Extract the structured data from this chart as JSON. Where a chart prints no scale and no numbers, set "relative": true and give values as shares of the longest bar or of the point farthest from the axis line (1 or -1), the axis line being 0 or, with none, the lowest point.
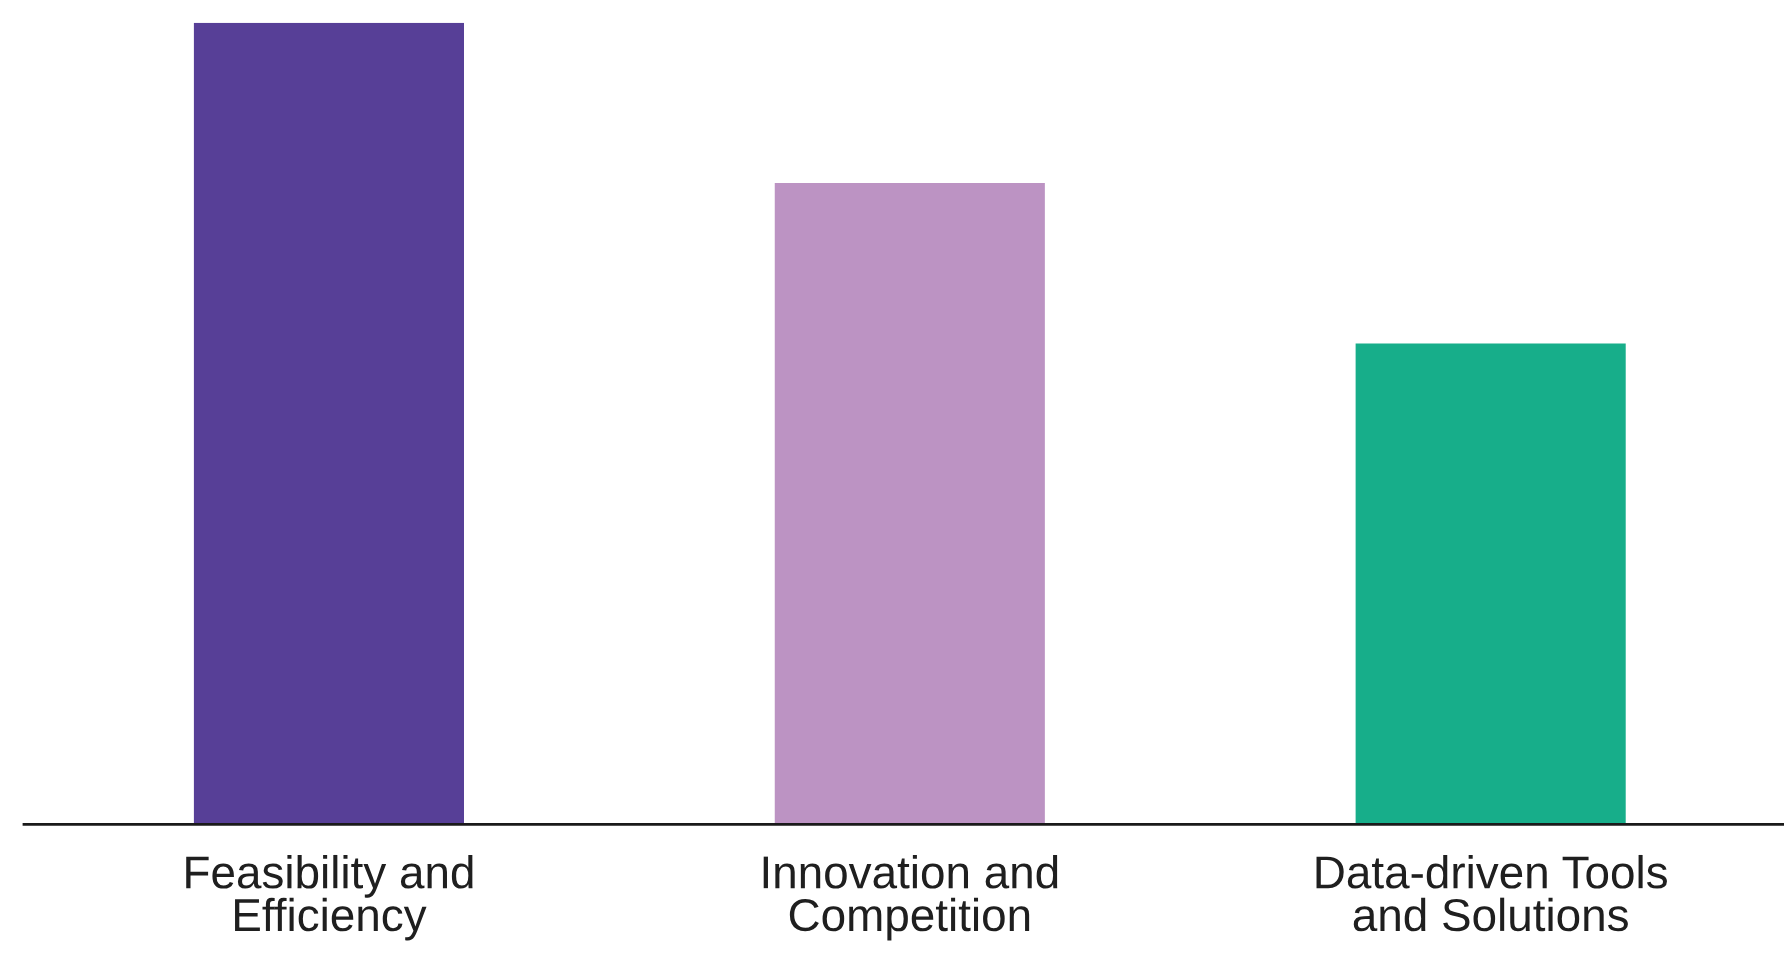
{
  "chart_data": {
    "type": "bar",
    "relative": true,
    "categories": [
      "Feasibility and\nEfficiency",
      "Innovation and\nCompetition",
      "Data-driven Tools\nand Solutions"
    ],
    "values": [
      1,
      0.8,
      0.6
    ],
    "colors": [
      "#573f97",
      "#bc93c3",
      "#17ae8a"
    ],
    "grid": false,
    "legend": false
  }
}
